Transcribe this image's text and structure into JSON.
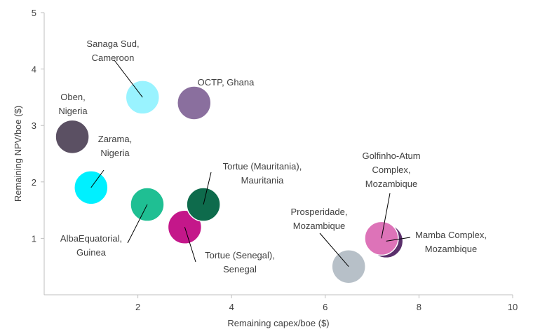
{
  "chart_data": {
    "type": "scatter",
    "title": "",
    "xlabel": "Remaining capex/boe ($)",
    "ylabel": "Remaining NPV/boe ($)",
    "xlim": [
      0,
      10
    ],
    "ylim": [
      0,
      5
    ],
    "xticks": [
      2,
      4,
      6,
      8,
      10
    ],
    "yticks": [
      1,
      2,
      3,
      4,
      5
    ],
    "grid": false,
    "points": [
      {
        "name": "Oben, Nigeria",
        "label_lines": [
          "Oben,",
          "Nigeria"
        ],
        "x": 0.6,
        "y": 2.8,
        "color": "#5b5063",
        "leader": false
      },
      {
        "name": "Zarama, Nigeria",
        "label_lines": [
          "Zarama,",
          "Nigeria"
        ],
        "x": 1.0,
        "y": 1.9,
        "color": "#00f0ff",
        "leader": true
      },
      {
        "name": "Sanaga Sud, Cameroon",
        "label_lines": [
          "Sanaga Sud,",
          "Cameroon"
        ],
        "x": 2.1,
        "y": 3.5,
        "color": "#99f3ff",
        "leader": true
      },
      {
        "name": "AlbaEquatorial, Guinea",
        "label_lines": [
          "AlbaEquatorial,",
          "Guinea"
        ],
        "x": 2.2,
        "y": 1.6,
        "color": "#1fbf93",
        "leader": true
      },
      {
        "name": "Tortue (Senegal), Senegal",
        "label_lines": [
          "Tortue (Senegal),",
          "Senegal"
        ],
        "x": 3.0,
        "y": 1.2,
        "color": "#c4178a",
        "leader": true
      },
      {
        "name": "OCTP, Ghana",
        "label_lines": [
          "OCTP, Ghana"
        ],
        "x": 3.2,
        "y": 3.4,
        "color": "#8a6f9e",
        "leader": false
      },
      {
        "name": "Tortue (Mauritania), Mauritania",
        "label_lines": [
          "Tortue (Mauritania),",
          "Mauritania"
        ],
        "x": 3.4,
        "y": 1.6,
        "color": "#0e6b4c",
        "leader": true
      },
      {
        "name": "Prosperidade, Mozambique",
        "label_lines": [
          "Prosperidade,",
          "Mozambique"
        ],
        "x": 6.5,
        "y": 0.5,
        "color": "#b7c0c8",
        "leader": true
      },
      {
        "name": "Mamba Complex, Mozambique",
        "label_lines": [
          "Mamba Complex,",
          "Mozambique"
        ],
        "x": 7.3,
        "y": 0.95,
        "color": "#5a2f6b",
        "leader": true
      },
      {
        "name": "Golfinho-Atum Complex, Mozambique",
        "label_lines": [
          "Golfinho-Atum",
          "Complex,",
          "Mozambique"
        ],
        "x": 7.2,
        "y": 1.0,
        "color": "#dd73b8",
        "leader": true
      }
    ]
  }
}
